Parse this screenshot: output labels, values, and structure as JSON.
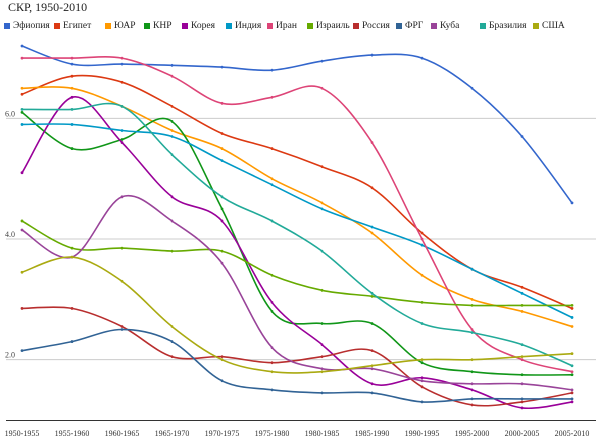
{
  "chart_data": {
    "type": "line",
    "title": "СКР, 1950-2010",
    "xlabel": "",
    "ylabel": "",
    "ylim": [
      1.0,
      7.3
    ],
    "yticks": [
      2.0,
      4.0,
      6.0
    ],
    "ytick_labels": [
      "2.0",
      "4.0",
      "6.0"
    ],
    "grid": "horizontal",
    "legend_position": "top",
    "categories": [
      "1950-1955",
      "1955-1960",
      "1960-1965",
      "1965-1970",
      "1970-1975",
      "1975-1980",
      "1980-1985",
      "1985-1990",
      "1990-1995",
      "1995-2000",
      "2000-2005",
      "2005-2010"
    ],
    "series": [
      {
        "name": "Эфиопия",
        "color": "#3366cc",
        "values": [
          7.2,
          6.9,
          6.9,
          6.88,
          6.85,
          6.8,
          6.95,
          7.05,
          7.0,
          6.5,
          5.7,
          4.6
        ]
      },
      {
        "name": "Египет",
        "color": "#dc3912",
        "values": [
          6.4,
          6.7,
          6.6,
          6.2,
          5.75,
          5.5,
          5.2,
          4.85,
          4.1,
          3.5,
          3.2,
          2.85
        ]
      },
      {
        "name": "ЮАР",
        "color": "#ff9900",
        "values": [
          6.5,
          6.5,
          6.2,
          5.8,
          5.5,
          5.0,
          4.6,
          4.1,
          3.4,
          3.0,
          2.8,
          2.55
        ]
      },
      {
        "name": "КНР",
        "color": "#109618",
        "values": [
          6.1,
          5.5,
          5.65,
          5.95,
          4.5,
          2.8,
          2.6,
          2.6,
          1.95,
          1.8,
          1.75,
          1.75
        ]
      },
      {
        "name": "Корея",
        "color": "#990099",
        "values": [
          5.1,
          6.35,
          5.6,
          4.7,
          4.3,
          2.95,
          2.25,
          1.6,
          1.7,
          1.5,
          1.2,
          1.3
        ]
      },
      {
        "name": "Индия",
        "color": "#0099c6",
        "values": [
          5.9,
          5.9,
          5.8,
          5.7,
          5.3,
          4.9,
          4.5,
          4.2,
          3.9,
          3.5,
          3.1,
          2.7
        ]
      },
      {
        "name": "Иран",
        "color": "#dd4477",
        "values": [
          7.0,
          7.0,
          7.0,
          6.7,
          6.25,
          6.35,
          6.5,
          5.6,
          4.0,
          2.5,
          2.0,
          1.8
        ]
      },
      {
        "name": "Израиль",
        "color": "#66aa00",
        "values": [
          4.3,
          3.85,
          3.85,
          3.8,
          3.8,
          3.4,
          3.15,
          3.05,
          2.95,
          2.9,
          2.9,
          2.9
        ]
      },
      {
        "name": "Россия",
        "color": "#b82e2e",
        "values": [
          2.85,
          2.85,
          2.55,
          2.05,
          2.05,
          1.95,
          2.05,
          2.15,
          1.55,
          1.25,
          1.3,
          1.45
        ]
      },
      {
        "name": "ФРГ",
        "color": "#316395",
        "values": [
          2.15,
          2.3,
          2.5,
          2.3,
          1.65,
          1.5,
          1.45,
          1.45,
          1.3,
          1.35,
          1.35,
          1.35
        ]
      },
      {
        "name": "Куба",
        "color": "#994499",
        "values": [
          4.15,
          3.7,
          4.7,
          4.3,
          3.6,
          2.2,
          1.85,
          1.85,
          1.65,
          1.6,
          1.6,
          1.5
        ]
      },
      {
        "name": "Бразилия",
        "color": "#22aa99",
        "values": [
          6.15,
          6.15,
          6.2,
          5.4,
          4.7,
          4.3,
          3.8,
          3.1,
          2.6,
          2.45,
          2.25,
          1.9
        ]
      },
      {
        "name": "США",
        "color": "#aaaa11",
        "values": [
          3.45,
          3.7,
          3.3,
          2.55,
          2.0,
          1.8,
          1.8,
          1.9,
          2.0,
          2.0,
          2.05,
          2.1
        ]
      }
    ]
  }
}
